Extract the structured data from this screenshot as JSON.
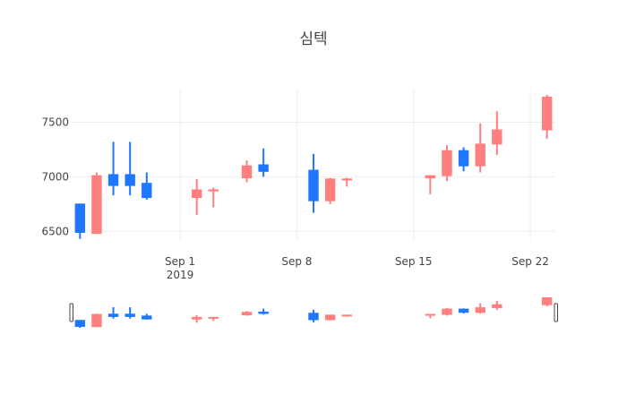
{
  "chart_data": {
    "type": "candlestick",
    "title": "심텍",
    "increasing_color": "#ff7f7f",
    "decreasing_color": "#1f77ff",
    "x_range": [
      "2019-08-26",
      "2019-09-23"
    ],
    "y_range": [
      6420,
      7800
    ],
    "y_ticks": [
      6500,
      7000,
      7500
    ],
    "x_ticks": [
      {
        "date": "2019-09-01",
        "label": "Sep 1",
        "sublabel": "2019"
      },
      {
        "date": "2019-09-08",
        "label": "Sep 8",
        "sublabel": ""
      },
      {
        "date": "2019-09-15",
        "label": "Sep 15",
        "sublabel": ""
      },
      {
        "date": "2019-09-22",
        "label": "Sep 22",
        "sublabel": ""
      }
    ],
    "rangeslider": true,
    "candles": [
      {
        "date": "2019-08-26",
        "open": 6750,
        "high": 6750,
        "low": 6430,
        "close": 6490
      },
      {
        "date": "2019-08-27",
        "open": 6480,
        "high": 7040,
        "low": 6480,
        "close": 7010
      },
      {
        "date": "2019-08-28",
        "open": 7020,
        "high": 7320,
        "low": 6830,
        "close": 6920
      },
      {
        "date": "2019-08-29",
        "open": 7020,
        "high": 7320,
        "low": 6830,
        "close": 6920
      },
      {
        "date": "2019-08-30",
        "open": 6940,
        "high": 7040,
        "low": 6790,
        "close": 6810
      },
      {
        "date": "2019-09-02",
        "open": 6810,
        "high": 6980,
        "low": 6650,
        "close": 6880
      },
      {
        "date": "2019-09-03",
        "open": 6870,
        "high": 6900,
        "low": 6720,
        "close": 6880
      },
      {
        "date": "2019-09-05",
        "open": 6990,
        "high": 7150,
        "low": 6950,
        "close": 7100
      },
      {
        "date": "2019-09-06",
        "open": 7110,
        "high": 7260,
        "low": 7000,
        "close": 7050
      },
      {
        "date": "2019-09-09",
        "open": 7060,
        "high": 7210,
        "low": 6670,
        "close": 6780
      },
      {
        "date": "2019-09-10",
        "open": 6780,
        "high": 6990,
        "low": 6750,
        "close": 6980
      },
      {
        "date": "2019-09-11",
        "open": 6970,
        "high": 6990,
        "low": 6910,
        "close": 6980
      },
      {
        "date": "2019-09-16",
        "open": 6990,
        "high": 7010,
        "low": 6840,
        "close": 7010
      },
      {
        "date": "2019-09-17",
        "open": 7010,
        "high": 7290,
        "low": 6960,
        "close": 7240
      },
      {
        "date": "2019-09-18",
        "open": 7240,
        "high": 7270,
        "low": 7050,
        "close": 7100
      },
      {
        "date": "2019-09-19",
        "open": 7100,
        "high": 7490,
        "low": 7040,
        "close": 7300
      },
      {
        "date": "2019-09-20",
        "open": 7300,
        "high": 7600,
        "low": 7200,
        "close": 7430
      },
      {
        "date": "2019-09-23",
        "open": 7430,
        "high": 7750,
        "low": 7350,
        "close": 7730
      }
    ]
  }
}
